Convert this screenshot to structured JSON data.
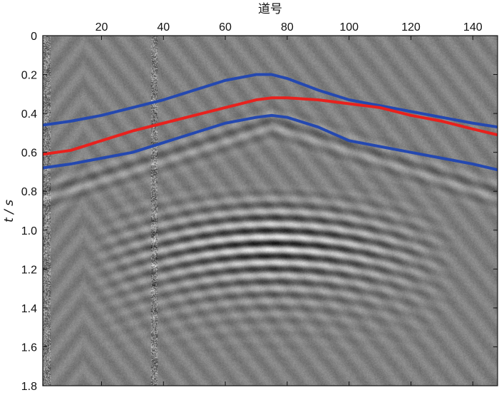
{
  "chart_data": {
    "type": "line",
    "xlabel": "道号",
    "ylabel": "t / s",
    "x_axis_position": "top",
    "y_inverted": true,
    "xlim": [
      1,
      148
    ],
    "ylim": [
      0,
      1.8
    ],
    "x_ticks": [
      20,
      40,
      60,
      80,
      100,
      120,
      140
    ],
    "y_ticks": [
      0,
      0.2,
      0.4,
      0.6,
      0.8,
      1.0,
      1.2,
      1.4,
      1.6,
      1.8
    ],
    "y_tick_labels": [
      "0",
      "0.2",
      "0.4",
      "0.6",
      "0.8",
      "1.0",
      "1.2",
      "1.4",
      "1.6",
      "1.8"
    ],
    "background": "grayscale seismic gather with hyperbolic reflection events",
    "grid": false,
    "legend": "none",
    "series": [
      {
        "color": "#2448b0",
        "x": [
          1,
          10,
          20,
          30,
          40,
          50,
          60,
          70,
          75,
          80,
          90,
          100,
          110,
          120,
          130,
          140,
          148
        ],
        "y": [
          0.46,
          0.44,
          0.41,
          0.37,
          0.33,
          0.28,
          0.23,
          0.2,
          0.2,
          0.22,
          0.28,
          0.33,
          0.36,
          0.39,
          0.42,
          0.45,
          0.47
        ]
      },
      {
        "color": "#e8211d",
        "x": [
          1,
          10,
          20,
          30,
          40,
          50,
          60,
          70,
          75,
          80,
          90,
          100,
          110,
          120,
          130,
          140,
          148
        ],
        "y": [
          0.61,
          0.59,
          0.54,
          0.49,
          0.45,
          0.41,
          0.37,
          0.33,
          0.32,
          0.32,
          0.33,
          0.35,
          0.37,
          0.41,
          0.44,
          0.48,
          0.51
        ]
      },
      {
        "color": "#2448b0",
        "x": [
          1,
          10,
          20,
          30,
          40,
          50,
          60,
          70,
          75,
          80,
          90,
          100,
          110,
          120,
          130,
          140,
          148
        ],
        "y": [
          0.68,
          0.66,
          0.63,
          0.6,
          0.55,
          0.5,
          0.45,
          0.42,
          0.41,
          0.42,
          0.47,
          0.54,
          0.57,
          0.6,
          0.63,
          0.66,
          0.69
        ]
      }
    ]
  }
}
